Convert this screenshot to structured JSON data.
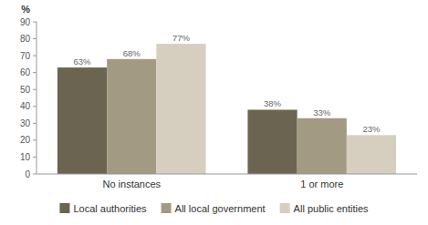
{
  "chart_data": {
    "type": "bar",
    "ylabel": "%",
    "categories": [
      "No instances",
      "1 or more"
    ],
    "series": [
      {
        "name": "Local authorities",
        "color": "#6b6451",
        "values": [
          63,
          38
        ],
        "value_labels": [
          "63%",
          "38%"
        ]
      },
      {
        "name": "All local government",
        "color": "#a39a84",
        "values": [
          68,
          33
        ],
        "value_labels": [
          "68%",
          "33%"
        ]
      },
      {
        "name": "All public entities",
        "color": "#d6cfc0",
        "values": [
          77,
          23
        ],
        "value_labels": [
          "77%",
          "23%"
        ]
      }
    ],
    "ylim": [
      0,
      90
    ],
    "yticks": [
      0,
      10,
      20,
      30,
      40,
      50,
      60,
      70,
      80,
      90
    ],
    "grid": false,
    "legend": "bottom",
    "data_labels": true
  }
}
